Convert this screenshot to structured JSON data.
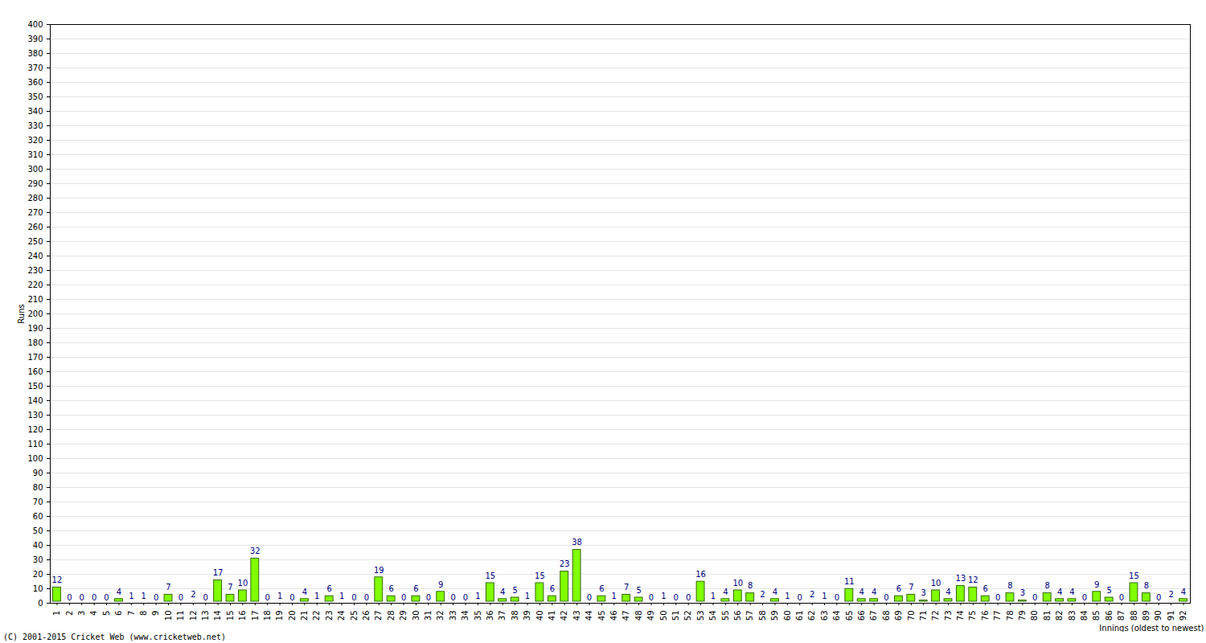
{
  "chart_data": {
    "type": "bar",
    "y_label": "Runs",
    "x_label": "Innings (oldest to newest)",
    "annotations": [
      "(C) 2001-2015 Cricket Web (www.cricketweb.net)"
    ],
    "categories": [
      "1",
      "2",
      "3",
      "4",
      "5",
      "6",
      "7",
      "8",
      "9",
      "10",
      "11",
      "12",
      "13",
      "14",
      "15",
      "16",
      "17",
      "18",
      "19",
      "20",
      "21",
      "22",
      "23",
      "24",
      "25",
      "26",
      "27",
      "28",
      "29",
      "30",
      "31",
      "32",
      "33",
      "34",
      "35",
      "36",
      "37",
      "38",
      "39",
      "40",
      "41",
      "42",
      "43",
      "44",
      "45",
      "46",
      "47",
      "48",
      "49",
      "50",
      "51",
      "52",
      "53",
      "54",
      "55",
      "56",
      "57",
      "58",
      "59",
      "60",
      "61",
      "62",
      "63",
      "64",
      "65",
      "66",
      "67",
      "68",
      "69",
      "70",
      "71",
      "72",
      "73",
      "74",
      "75",
      "76",
      "77",
      "78",
      "79",
      "80",
      "81",
      "82",
      "83",
      "84",
      "85",
      "86",
      "87",
      "88",
      "89",
      "90",
      "91",
      "92"
    ],
    "values": [
      12,
      0,
      0,
      0,
      0,
      4,
      1,
      1,
      0,
      7,
      0,
      2,
      0,
      17,
      7,
      10,
      32,
      0,
      1,
      0,
      4,
      1,
      6,
      1,
      0,
      0,
      19,
      6,
      0,
      6,
      0,
      9,
      0,
      0,
      1,
      15,
      4,
      5,
      1,
      15,
      6,
      23,
      38,
      0,
      6,
      1,
      7,
      5,
      0,
      1,
      0,
      0,
      16,
      1,
      4,
      10,
      8,
      2,
      4,
      1,
      0,
      2,
      1,
      0,
      11,
      4,
      4,
      0,
      6,
      7,
      3,
      10,
      4,
      13,
      12,
      6,
      0,
      8,
      3,
      0,
      8,
      4,
      4,
      0,
      9,
      5,
      0,
      15,
      8,
      0,
      2,
      4
    ],
    "color": "#80ff00",
    "ylim": [
      0,
      400
    ],
    "yticks": [
      0,
      10,
      20,
      30,
      40,
      50,
      60,
      70,
      80,
      90,
      100,
      110,
      120,
      130,
      140,
      150,
      160,
      170,
      180,
      190,
      200,
      210,
      220,
      230,
      240,
      250,
      260,
      270,
      280,
      290,
      300,
      310,
      320,
      330,
      340,
      350,
      360,
      370,
      380,
      390,
      400
    ],
    "grid": true,
    "data_labels": true
  }
}
